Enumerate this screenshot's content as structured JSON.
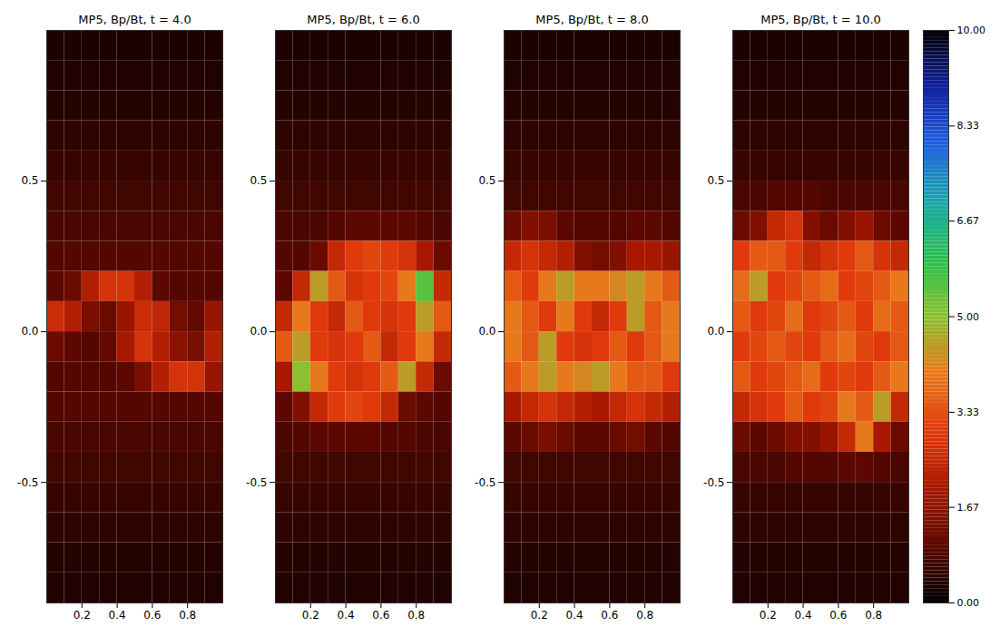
{
  "chart_data": [
    {
      "type": "heatmap",
      "title": "MP5, Bp/Bt, t = 4.0",
      "x": [
        0.05,
        0.15,
        0.25,
        0.35,
        0.45,
        0.55,
        0.65,
        0.75,
        0.85,
        0.95
      ],
      "y": [
        0.95,
        0.85,
        0.75,
        0.65,
        0.55,
        0.45,
        0.35,
        0.25,
        0.15,
        0.05,
        -0.05,
        -0.15,
        -0.25,
        -0.35,
        -0.45,
        -0.55,
        -0.65,
        -0.75,
        -0.85
      ],
      "values": [
        [
          0.3,
          0.3,
          0.3,
          0.3,
          0.3,
          0.3,
          0.3,
          0.3,
          0.3,
          0.3
        ],
        [
          0.35,
          0.35,
          0.35,
          0.35,
          0.35,
          0.35,
          0.35,
          0.35,
          0.35,
          0.35
        ],
        [
          0.4,
          0.4,
          0.4,
          0.4,
          0.4,
          0.4,
          0.4,
          0.4,
          0.4,
          0.4
        ],
        [
          0.5,
          0.5,
          0.5,
          0.5,
          0.5,
          0.5,
          0.5,
          0.5,
          0.5,
          0.5
        ],
        [
          0.6,
          0.6,
          0.6,
          0.6,
          0.6,
          0.6,
          0.6,
          0.6,
          0.6,
          0.6
        ],
        [
          0.7,
          0.7,
          0.7,
          0.7,
          0.7,
          0.7,
          0.7,
          0.7,
          0.7,
          0.7
        ],
        [
          0.8,
          0.8,
          0.8,
          0.8,
          0.8,
          0.8,
          0.8,
          0.8,
          0.8,
          0.8
        ],
        [
          0.9,
          0.9,
          0.9,
          0.9,
          0.9,
          0.9,
          0.9,
          0.9,
          0.9,
          0.9
        ],
        [
          1.0,
          1.2,
          2.2,
          2.8,
          2.8,
          2.2,
          1.0,
          0.9,
          0.9,
          0.9
        ],
        [
          2.6,
          2.2,
          1.4,
          1.2,
          1.8,
          2.6,
          2.4,
          1.3,
          1.1,
          1.8
        ],
        [
          1.2,
          1.0,
          0.9,
          1.1,
          2.0,
          2.8,
          2.2,
          1.6,
          1.4,
          2.2
        ],
        [
          0.9,
          0.9,
          0.9,
          0.9,
          1.0,
          1.4,
          2.2,
          2.8,
          2.8,
          1.8
        ],
        [
          0.9,
          0.9,
          0.9,
          0.9,
          0.9,
          0.9,
          0.9,
          0.9,
          0.9,
          0.9
        ],
        [
          0.8,
          0.8,
          0.8,
          0.8,
          0.8,
          0.8,
          0.8,
          0.8,
          0.8,
          0.8
        ],
        [
          0.7,
          0.7,
          0.7,
          0.7,
          0.7,
          0.7,
          0.7,
          0.7,
          0.7,
          0.7
        ],
        [
          0.6,
          0.6,
          0.6,
          0.6,
          0.6,
          0.6,
          0.6,
          0.6,
          0.6,
          0.6
        ],
        [
          0.5,
          0.5,
          0.5,
          0.5,
          0.5,
          0.5,
          0.5,
          0.5,
          0.5,
          0.5
        ],
        [
          0.4,
          0.4,
          0.4,
          0.4,
          0.4,
          0.4,
          0.4,
          0.4,
          0.4,
          0.4
        ],
        [
          0.35,
          0.35,
          0.35,
          0.35,
          0.35,
          0.35,
          0.35,
          0.35,
          0.35,
          0.35
        ]
      ],
      "xlim": [
        0,
        1
      ],
      "ylim": [
        -0.9,
        1.0
      ],
      "xticks": [
        0.2,
        0.4,
        0.6,
        0.8
      ],
      "yticks": [
        -0.5,
        {
          "value": 0,
          "label": "0.0"
        },
        0.5
      ]
    },
    {
      "type": "heatmap",
      "title": "MP5, Bp/Bt, t = 6.0",
      "x": [
        0.05,
        0.15,
        0.25,
        0.35,
        0.45,
        0.55,
        0.65,
        0.75,
        0.85,
        0.95
      ],
      "y": [
        0.95,
        0.85,
        0.75,
        0.65,
        0.55,
        0.45,
        0.35,
        0.25,
        0.15,
        0.05,
        -0.05,
        -0.15,
        -0.25,
        -0.35,
        -0.45,
        -0.55,
        -0.65,
        -0.75,
        -0.85
      ],
      "values": [
        [
          0.3,
          0.3,
          0.3,
          0.3,
          0.3,
          0.3,
          0.3,
          0.3,
          0.3,
          0.3
        ],
        [
          0.35,
          0.35,
          0.35,
          0.35,
          0.35,
          0.35,
          0.35,
          0.35,
          0.35,
          0.35
        ],
        [
          0.4,
          0.4,
          0.4,
          0.4,
          0.4,
          0.4,
          0.4,
          0.4,
          0.4,
          0.4
        ],
        [
          0.5,
          0.5,
          0.5,
          0.5,
          0.5,
          0.5,
          0.5,
          0.5,
          0.5,
          0.5
        ],
        [
          0.6,
          0.6,
          0.6,
          0.6,
          0.6,
          0.6,
          0.6,
          0.6,
          0.6,
          0.6
        ],
        [
          0.7,
          0.7,
          0.7,
          0.7,
          0.7,
          0.7,
          0.7,
          0.7,
          0.7,
          0.7
        ],
        [
          0.8,
          0.8,
          0.8,
          0.9,
          1.0,
          1.0,
          1.0,
          1.0,
          0.9,
          0.8
        ],
        [
          0.9,
          0.9,
          1.2,
          2.5,
          3.0,
          3.2,
          3.0,
          2.8,
          2.0,
          1.2
        ],
        [
          1.0,
          2.5,
          4.5,
          3.5,
          2.8,
          3.0,
          3.2,
          4.0,
          5.5,
          2.5
        ],
        [
          2.5,
          4.0,
          3.0,
          2.5,
          3.5,
          3.0,
          2.8,
          3.0,
          4.5,
          3.5
        ],
        [
          3.5,
          4.5,
          3.0,
          2.8,
          3.0,
          3.5,
          2.5,
          3.0,
          4.0,
          2.5
        ],
        [
          2.0,
          5.0,
          4.0,
          3.0,
          2.8,
          3.0,
          3.5,
          4.5,
          2.5,
          1.2
        ],
        [
          1.0,
          1.5,
          2.5,
          3.0,
          3.2,
          3.0,
          2.5,
          1.2,
          1.0,
          0.9
        ],
        [
          0.8,
          0.9,
          1.0,
          1.0,
          1.0,
          1.0,
          0.9,
          0.9,
          0.8,
          0.8
        ],
        [
          0.7,
          0.7,
          0.7,
          0.7,
          0.7,
          0.7,
          0.7,
          0.7,
          0.7,
          0.7
        ],
        [
          0.6,
          0.6,
          0.6,
          0.6,
          0.6,
          0.6,
          0.6,
          0.6,
          0.6,
          0.6
        ],
        [
          0.5,
          0.5,
          0.5,
          0.5,
          0.5,
          0.5,
          0.5,
          0.5,
          0.5,
          0.5
        ],
        [
          0.4,
          0.4,
          0.4,
          0.4,
          0.4,
          0.4,
          0.4,
          0.4,
          0.4,
          0.4
        ],
        [
          0.35,
          0.35,
          0.35,
          0.35,
          0.35,
          0.35,
          0.35,
          0.35,
          0.35,
          0.35
        ]
      ],
      "xlim": [
        0,
        1
      ],
      "ylim": [
        -0.9,
        1.0
      ],
      "xticks": [
        0.2,
        0.4,
        0.6,
        0.8
      ],
      "yticks": [
        -0.5,
        {
          "value": 0,
          "label": "0.0"
        },
        0.5
      ]
    },
    {
      "type": "heatmap",
      "title": "MP5, Bp/Bt, t = 8.0",
      "x": [
        0.05,
        0.15,
        0.25,
        0.35,
        0.45,
        0.55,
        0.65,
        0.75,
        0.85,
        0.95
      ],
      "y": [
        0.95,
        0.85,
        0.75,
        0.65,
        0.55,
        0.45,
        0.35,
        0.25,
        0.15,
        0.05,
        -0.05,
        -0.15,
        -0.25,
        -0.35,
        -0.45,
        -0.55,
        -0.65,
        -0.75,
        -0.85
      ],
      "values": [
        [
          0.3,
          0.3,
          0.3,
          0.3,
          0.3,
          0.3,
          0.3,
          0.3,
          0.3,
          0.3
        ],
        [
          0.35,
          0.35,
          0.35,
          0.35,
          0.35,
          0.35,
          0.35,
          0.35,
          0.35,
          0.35
        ],
        [
          0.4,
          0.4,
          0.4,
          0.4,
          0.4,
          0.4,
          0.4,
          0.4,
          0.4,
          0.4
        ],
        [
          0.5,
          0.5,
          0.5,
          0.5,
          0.5,
          0.5,
          0.5,
          0.5,
          0.5,
          0.5
        ],
        [
          0.6,
          0.6,
          0.6,
          0.6,
          0.6,
          0.6,
          0.6,
          0.6,
          0.6,
          0.6
        ],
        [
          0.7,
          0.7,
          0.7,
          0.7,
          0.7,
          0.7,
          0.7,
          0.7,
          0.7,
          0.7
        ],
        [
          1.2,
          1.5,
          1.4,
          1.0,
          0.9,
          0.9,
          0.9,
          1.0,
          1.0,
          0.9
        ],
        [
          2.5,
          2.8,
          2.5,
          2.2,
          1.5,
          1.3,
          1.5,
          2.0,
          2.0,
          1.8
        ],
        [
          3.5,
          3.0,
          4.0,
          4.5,
          4.0,
          4.0,
          4.2,
          4.5,
          4.0,
          3.5
        ],
        [
          4.0,
          3.5,
          3.0,
          4.0,
          3.0,
          2.5,
          3.0,
          4.5,
          3.5,
          4.0
        ],
        [
          4.0,
          3.5,
          4.5,
          3.0,
          2.8,
          3.0,
          3.5,
          3.0,
          3.5,
          4.0
        ],
        [
          3.5,
          4.0,
          4.5,
          4.0,
          4.2,
          4.5,
          4.0,
          3.5,
          3.5,
          3.0
        ],
        [
          2.0,
          2.5,
          2.8,
          2.5,
          2.2,
          2.0,
          2.5,
          2.8,
          2.5,
          2.2
        ],
        [
          1.0,
          1.2,
          1.4,
          1.2,
          1.0,
          1.0,
          1.2,
          1.3,
          1.0,
          0.9
        ],
        [
          0.7,
          0.7,
          0.7,
          0.7,
          0.7,
          0.7,
          0.7,
          0.7,
          0.7,
          0.7
        ],
        [
          0.6,
          0.6,
          0.6,
          0.6,
          0.6,
          0.6,
          0.6,
          0.6,
          0.6,
          0.6
        ],
        [
          0.5,
          0.5,
          0.5,
          0.5,
          0.5,
          0.5,
          0.5,
          0.5,
          0.5,
          0.5
        ],
        [
          0.4,
          0.4,
          0.4,
          0.4,
          0.4,
          0.4,
          0.4,
          0.4,
          0.4,
          0.4
        ],
        [
          0.35,
          0.35,
          0.35,
          0.35,
          0.35,
          0.35,
          0.35,
          0.35,
          0.35,
          0.35
        ]
      ],
      "xlim": [
        0,
        1
      ],
      "ylim": [
        -0.9,
        1.0
      ],
      "xticks": [
        0.2,
        0.4,
        0.6,
        0.8
      ],
      "yticks": [
        -0.5,
        {
          "value": 0,
          "label": "0.0"
        },
        0.5
      ]
    },
    {
      "type": "heatmap",
      "title": "MP5, Bp/Bt, t = 10.0",
      "x": [
        0.05,
        0.15,
        0.25,
        0.35,
        0.45,
        0.55,
        0.65,
        0.75,
        0.85,
        0.95
      ],
      "y": [
        0.95,
        0.85,
        0.75,
        0.65,
        0.55,
        0.45,
        0.35,
        0.25,
        0.15,
        0.05,
        -0.05,
        -0.15,
        -0.25,
        -0.35,
        -0.45,
        -0.55,
        -0.65,
        -0.75,
        -0.85
      ],
      "values": [
        [
          0.3,
          0.3,
          0.3,
          0.3,
          0.3,
          0.3,
          0.3,
          0.3,
          0.3,
          0.3
        ],
        [
          0.35,
          0.35,
          0.35,
          0.35,
          0.35,
          0.35,
          0.35,
          0.35,
          0.35,
          0.35
        ],
        [
          0.4,
          0.4,
          0.4,
          0.4,
          0.4,
          0.4,
          0.4,
          0.4,
          0.4,
          0.4
        ],
        [
          0.5,
          0.5,
          0.5,
          0.5,
          0.5,
          0.5,
          0.5,
          0.5,
          0.5,
          0.5
        ],
        [
          0.6,
          0.6,
          0.6,
          0.6,
          0.6,
          0.6,
          0.6,
          0.6,
          0.6,
          0.6
        ],
        [
          0.8,
          0.8,
          0.9,
          0.9,
          0.9,
          0.8,
          0.8,
          0.8,
          0.8,
          0.8
        ],
        [
          1.2,
          1.5,
          2.5,
          2.8,
          1.5,
          1.2,
          1.5,
          1.8,
          1.2,
          1.0
        ],
        [
          3.0,
          3.5,
          3.5,
          3.0,
          2.5,
          2.8,
          3.0,
          3.5,
          2.8,
          2.5
        ],
        [
          3.8,
          4.5,
          3.0,
          3.2,
          3.5,
          3.8,
          3.0,
          3.2,
          3.5,
          4.0
        ],
        [
          3.5,
          3.0,
          3.2,
          3.8,
          3.0,
          3.2,
          3.5,
          3.0,
          3.8,
          3.5
        ],
        [
          3.0,
          3.2,
          3.5,
          3.2,
          3.0,
          3.5,
          3.8,
          3.2,
          3.0,
          3.5
        ],
        [
          3.5,
          3.0,
          3.2,
          3.5,
          3.8,
          3.0,
          3.2,
          3.0,
          3.5,
          4.0
        ],
        [
          2.5,
          2.8,
          3.0,
          3.5,
          3.0,
          3.2,
          4.0,
          3.5,
          4.5,
          2.5
        ],
        [
          1.2,
          1.0,
          1.2,
          1.5,
          1.5,
          1.8,
          2.5,
          4.0,
          2.0,
          1.2
        ],
        [
          0.8,
          0.8,
          0.8,
          0.9,
          0.9,
          0.9,
          1.0,
          1.0,
          0.9,
          0.8
        ],
        [
          0.6,
          0.6,
          0.6,
          0.6,
          0.6,
          0.6,
          0.6,
          0.6,
          0.6,
          0.6
        ],
        [
          0.5,
          0.5,
          0.5,
          0.5,
          0.5,
          0.5,
          0.5,
          0.5,
          0.5,
          0.5
        ],
        [
          0.4,
          0.4,
          0.4,
          0.4,
          0.4,
          0.4,
          0.4,
          0.4,
          0.4,
          0.4
        ],
        [
          0.35,
          0.35,
          0.35,
          0.35,
          0.35,
          0.35,
          0.35,
          0.35,
          0.35,
          0.35
        ]
      ],
      "xlim": [
        0,
        1
      ],
      "ylim": [
        -0.9,
        1.0
      ],
      "xticks": [
        0.2,
        0.4,
        0.6,
        0.8
      ],
      "yticks": [
        -0.5,
        {
          "value": 0,
          "label": "0.0"
        },
        0.5
      ],
      "colorbar": {
        "range": [
          0,
          10
        ],
        "ticks": [
          {
            "value": 0,
            "label": "0.00"
          },
          {
            "value": 1.67,
            "label": "1.67"
          },
          {
            "value": 3.33,
            "label": "3.33"
          },
          {
            "value": 5,
            "label": "5.00"
          },
          {
            "value": 6.67,
            "label": "6.67"
          },
          {
            "value": 8.33,
            "label": "8.33"
          },
          {
            "value": 10,
            "label": "10.00"
          }
        ]
      }
    }
  ]
}
